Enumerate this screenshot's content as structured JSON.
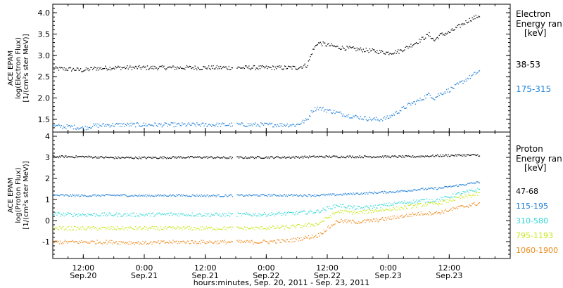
{
  "chart_data": [
    {
      "type": "scatter",
      "panel": "electron",
      "ylabel_lines": [
        "ACE EPAM",
        "log(Electron Flux)",
        "[1/(cm²s ster MeV)]"
      ],
      "ylim": [
        1.2,
        4.2
      ],
      "yticks": [
        "1.5",
        "2.0",
        "2.5",
        "3.0",
        "3.5",
        "4.0"
      ],
      "ytick_values": [
        1.5,
        2.0,
        2.5,
        3.0,
        3.5,
        4.0
      ],
      "legend_title": [
        "Electron",
        "Energy ran",
        "[keV]"
      ],
      "series": [
        {
          "name": "38-53",
          "color": "#000000",
          "x": [
            6,
            10,
            12,
            14,
            18,
            24,
            30,
            36,
            40,
            46,
            50,
            54,
            56,
            57,
            58,
            59,
            62,
            66,
            70,
            72,
            74,
            76,
            78,
            80,
            81,
            82,
            84,
            86,
            88,
            90
          ],
          "y": [
            2.7,
            2.68,
            2.66,
            2.7,
            2.72,
            2.72,
            2.72,
            2.72,
            2.72,
            2.72,
            2.72,
            2.72,
            2.78,
            3.1,
            3.3,
            3.28,
            3.2,
            3.15,
            3.1,
            3.07,
            3.1,
            3.22,
            3.35,
            3.5,
            3.35,
            3.48,
            3.55,
            3.7,
            3.85,
            3.95
          ]
        },
        {
          "name": "175-315",
          "color": "#1f7fd8",
          "x": [
            6,
            10,
            12,
            14,
            18,
            24,
            30,
            36,
            40,
            46,
            50,
            54,
            56,
            57,
            58,
            60,
            64,
            68,
            70,
            72,
            74,
            76,
            78,
            80,
            81,
            82,
            84,
            86,
            88,
            90
          ],
          "y": [
            1.35,
            1.33,
            1.3,
            1.36,
            1.38,
            1.38,
            1.38,
            1.38,
            1.38,
            1.38,
            1.38,
            1.38,
            1.5,
            1.72,
            1.78,
            1.72,
            1.6,
            1.52,
            1.5,
            1.55,
            1.7,
            1.85,
            1.95,
            2.1,
            2.0,
            2.1,
            2.2,
            2.35,
            2.5,
            2.65
          ]
        }
      ]
    },
    {
      "type": "scatter",
      "panel": "proton",
      "ylabel_lines": [
        "ACE EPAM",
        "log(Proton Flux)",
        "[1/(cm²s ster MeV)]"
      ],
      "ylim": [
        -1.8,
        4.2
      ],
      "yticks": [
        "-1",
        "0",
        "1",
        "2",
        "3",
        "4"
      ],
      "ytick_values": [
        -1,
        0,
        1,
        2,
        3,
        4
      ],
      "legend_title": [
        "Proton",
        "Energy ran",
        "[keV]"
      ],
      "series": [
        {
          "name": "47-68",
          "color": "#000000",
          "x": [
            6,
            12,
            18,
            24,
            30,
            36,
            40,
            46,
            52,
            58,
            64,
            70,
            76,
            82,
            86,
            90
          ],
          "y": [
            3.05,
            3.05,
            3.0,
            3.0,
            3.02,
            3.02,
            3.0,
            3.02,
            3.02,
            3.05,
            3.05,
            3.05,
            3.05,
            3.1,
            3.12,
            3.12
          ]
        },
        {
          "name": "115-195",
          "color": "#1f7fd8",
          "x": [
            6,
            12,
            18,
            24,
            30,
            36,
            40,
            46,
            52,
            58,
            62,
            66,
            70,
            74,
            78,
            82,
            86,
            90
          ],
          "y": [
            1.22,
            1.2,
            1.22,
            1.2,
            1.22,
            1.2,
            1.2,
            1.22,
            1.22,
            1.22,
            1.25,
            1.3,
            1.35,
            1.4,
            1.5,
            1.55,
            1.7,
            1.85
          ]
        },
        {
          "name": "310-580",
          "color": "#33d8d8",
          "x": [
            6,
            12,
            18,
            24,
            30,
            36,
            40,
            46,
            52,
            58,
            62,
            66,
            70,
            74,
            78,
            82,
            86,
            90
          ],
          "y": [
            0.32,
            0.3,
            0.3,
            0.3,
            0.32,
            0.3,
            0.3,
            0.3,
            0.35,
            0.45,
            0.75,
            0.6,
            0.7,
            0.85,
            0.95,
            1.0,
            1.3,
            1.5
          ]
        },
        {
          "name": "795-1193",
          "color": "#c8e81a",
          "x": [
            6,
            12,
            18,
            24,
            30,
            36,
            40,
            46,
            52,
            58,
            62,
            66,
            70,
            74,
            78,
            82,
            86,
            90
          ],
          "y": [
            -0.35,
            -0.35,
            -0.35,
            -0.35,
            -0.35,
            -0.35,
            -0.35,
            -0.35,
            -0.3,
            -0.15,
            0.45,
            0.4,
            0.5,
            0.6,
            0.75,
            0.85,
            1.1,
            1.3
          ]
        },
        {
          "name": "1060-1900",
          "color": "#f08a1c",
          "x": [
            6,
            12,
            18,
            24,
            30,
            36,
            40,
            46,
            52,
            58,
            62,
            66,
            70,
            74,
            78,
            82,
            86,
            90
          ],
          "y": [
            -1.0,
            -1.0,
            -1.0,
            -1.05,
            -1.0,
            -1.0,
            -1.0,
            -1.0,
            -0.95,
            -0.7,
            0.0,
            -0.05,
            0.05,
            0.2,
            0.35,
            0.4,
            0.65,
            0.85
          ]
        }
      ]
    }
  ],
  "x_axis": {
    "unit": "hours since Sep.20 00:00",
    "range": [
      6,
      96
    ],
    "ticks": [
      {
        "hours": 12,
        "time": "12:00",
        "date": "Sep.20"
      },
      {
        "hours": 24,
        "time": "0:00",
        "date": "Sep.21"
      },
      {
        "hours": 36,
        "time": "12:00",
        "date": "Sep.21"
      },
      {
        "hours": 48,
        "time": "0:00",
        "date": "Sep.22"
      },
      {
        "hours": 60,
        "time": "12:00",
        "date": "Sep.22"
      },
      {
        "hours": 72,
        "time": "0:00",
        "date": "Sep.23"
      },
      {
        "hours": 84,
        "time": "12:00",
        "date": "Sep.23"
      }
    ],
    "title": "hours:minutes, Sep. 20, 2011 - Sep. 23, 2011"
  }
}
